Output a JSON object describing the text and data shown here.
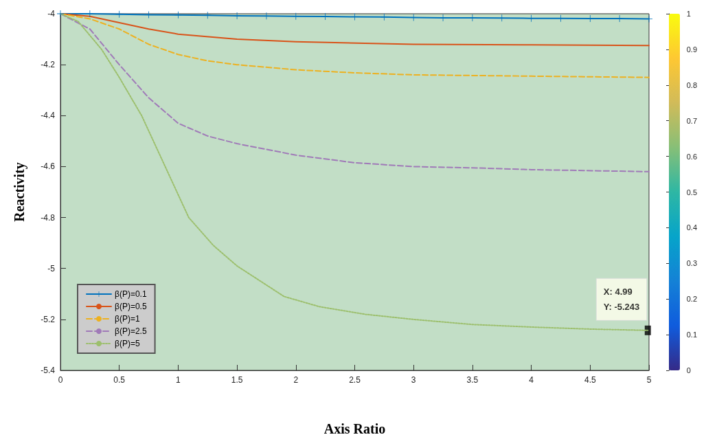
{
  "chart_data": {
    "type": "line",
    "xlabel": "Axis Ratio",
    "ylabel": "Reactivity",
    "xlim": [
      0,
      5
    ],
    "ylim": [
      -5.4,
      -4
    ],
    "xticks": [
      0,
      0.5,
      1,
      1.5,
      2,
      2.5,
      3,
      3.5,
      4,
      4.5,
      5
    ],
    "yticks": [
      -5.4,
      -5.2,
      -5,
      -4.8,
      -4.6,
      -4.4,
      -4.2,
      -4
    ],
    "clim": [
      0,
      1
    ],
    "cticks": [
      0,
      0.1,
      0.2,
      0.3,
      0.4,
      0.5,
      0.6,
      0.7,
      0.8,
      0.9,
      1
    ],
    "grid": false,
    "legend": "bottom left",
    "annotations": [
      {
        "text": "X: 4.99\nY: -5.243",
        "x": 4.99,
        "y": -5.243
      }
    ],
    "series": [
      {
        "name": "β(P)=0.1",
        "color": "#0072bd",
        "marker": "cross",
        "line_style": "solid",
        "x": [
          0,
          0.25,
          0.5,
          0.75,
          1,
          1.25,
          1.5,
          1.75,
          2,
          2.25,
          2.5,
          2.75,
          3,
          3.25,
          3.5,
          3.75,
          4,
          4.25,
          4.5,
          4.75,
          5
        ],
        "values": [
          -4.0,
          -4.0,
          -4.002,
          -4.004,
          -4.005,
          -4.006,
          -4.008,
          -4.009,
          -4.01,
          -4.011,
          -4.012,
          -4.013,
          -4.015,
          -4.016,
          -4.016,
          -4.017,
          -4.018,
          -4.018,
          -4.019,
          -4.019,
          -4.02
        ]
      },
      {
        "name": "β(P)=0.5",
        "color": "#d95319",
        "marker": "none",
        "line_style": "solid",
        "x": [
          0,
          0.25,
          0.5,
          0.75,
          1,
          1.5,
          2,
          3,
          4,
          5
        ],
        "values": [
          -4.0,
          -4.01,
          -4.035,
          -4.06,
          -4.08,
          -4.1,
          -4.11,
          -4.12,
          -4.122,
          -4.125
        ]
      },
      {
        "name": "β(P)=1",
        "color": "#edb120",
        "marker": "none",
        "line_style": "dashed",
        "x": [
          0,
          0.25,
          0.5,
          0.75,
          1,
          1.25,
          1.5,
          2,
          2.5,
          3,
          4,
          5
        ],
        "values": [
          -4.0,
          -4.02,
          -4.06,
          -4.12,
          -4.16,
          -4.185,
          -4.2,
          -4.22,
          -4.232,
          -4.24,
          -4.245,
          -4.25
        ]
      },
      {
        "name": "β(P)=2.5",
        "color": "#a07ab8",
        "marker": "none",
        "line_style": "dashed",
        "x": [
          0,
          0.25,
          0.5,
          0.75,
          1,
          1.25,
          1.5,
          2,
          2.5,
          3,
          3.5,
          4,
          5
        ],
        "values": [
          -4.0,
          -4.06,
          -4.2,
          -4.33,
          -4.43,
          -4.48,
          -4.51,
          -4.555,
          -4.585,
          -4.6,
          -4.605,
          -4.612,
          -4.62
        ]
      },
      {
        "name": "β(P)=5",
        "color": "#9cbf6c",
        "marker": "none",
        "line_style": "dotted",
        "x": [
          0,
          0.15,
          0.35,
          0.5,
          0.69,
          0.9,
          1.09,
          1.3,
          1.5,
          1.9,
          2.2,
          2.59,
          3,
          3.5,
          4,
          4.5,
          4.99
        ],
        "values": [
          -4.0,
          -4.03,
          -4.14,
          -4.25,
          -4.4,
          -4.61,
          -4.8,
          -4.91,
          -4.99,
          -5.11,
          -5.15,
          -5.18,
          -5.2,
          -5.22,
          -5.23,
          -5.238,
          -5.243
        ]
      }
    ]
  }
}
